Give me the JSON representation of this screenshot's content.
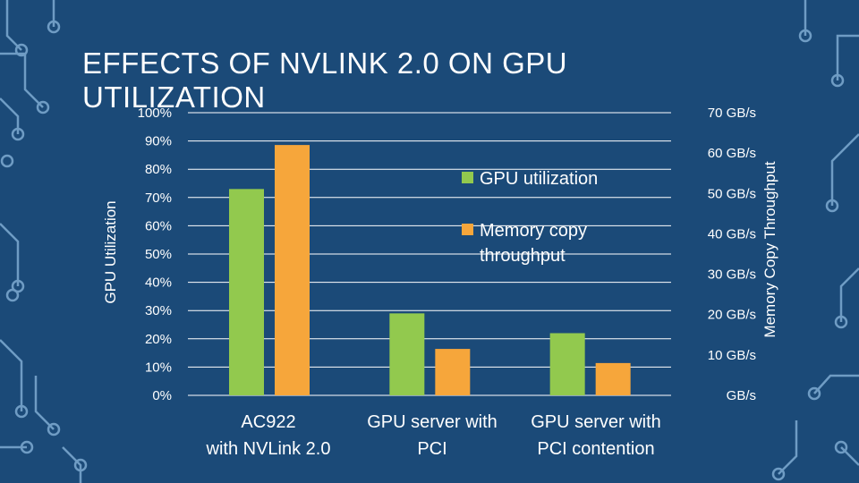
{
  "slide": {
    "title": "EFFECTS OF NVLINK 2.0 ON GPU UTILIZATION"
  },
  "colors": {
    "background": "#1b4a78",
    "circuit": "#6f9cc4",
    "gpu_utilization": "#92c94e",
    "memory_copy": "#f6a63b",
    "text": "#ffffff"
  },
  "chart_data": {
    "type": "bar",
    "title": "",
    "categories": [
      [
        "AC922",
        "with NVLink 2.0"
      ],
      [
        "GPU server with",
        "PCI"
      ],
      [
        "GPU server with",
        "PCI contention"
      ]
    ],
    "series": [
      {
        "name": "GPU utilization",
        "axis": "left",
        "values": [
          73,
          29,
          22
        ]
      },
      {
        "name": "Memory copy throughput",
        "axis": "right",
        "values": [
          62,
          11.5,
          8
        ]
      }
    ],
    "left_axis": {
      "label": "GPU Utilization",
      "ticks": [
        "0%",
        "10%",
        "20%",
        "30%",
        "40%",
        "50%",
        "60%",
        "70%",
        "80%",
        "90%",
        "100%"
      ],
      "ylim": [
        0,
        100
      ]
    },
    "right_axis": {
      "label": "Memory Copy Throughput",
      "ticks": [
        "GB/s",
        "10 GB/s",
        "20 GB/s",
        "30 GB/s",
        "40 GB/s",
        "50 GB/s",
        "60 GB/s",
        "70 GB/s"
      ],
      "ylim": [
        0,
        70
      ]
    },
    "legend": {
      "placement": "center-right inside plot",
      "items": [
        {
          "line1": "GPU utilization",
          "line2": ""
        },
        {
          "line1": "Memory copy",
          "line2": "throughput"
        }
      ]
    },
    "grid": true
  }
}
